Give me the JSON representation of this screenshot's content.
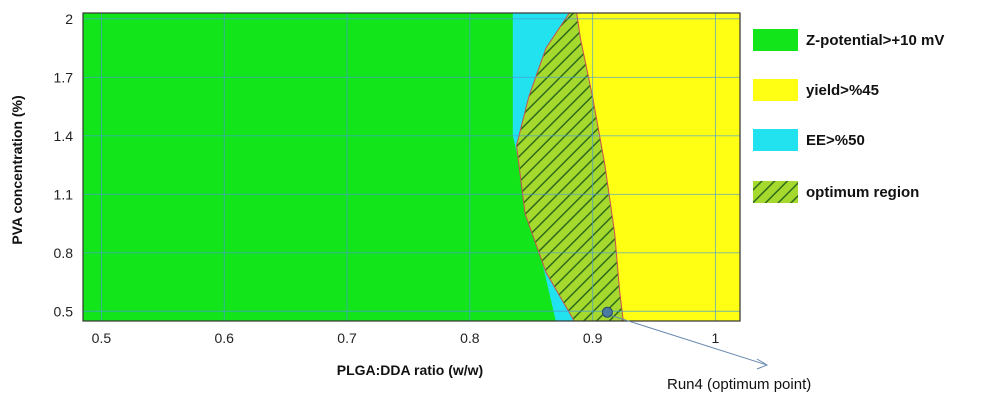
{
  "chart_data": {
    "type": "area",
    "title": "",
    "xlabel": "PLGA:DDA ratio (w/w)",
    "ylabel": "PVA concentration (%)",
    "xlim": [
      0.485,
      1.02
    ],
    "ylim": [
      0.45,
      2.03
    ],
    "x_ticks": [
      0.5,
      0.6,
      0.7,
      0.8,
      0.9,
      1
    ],
    "x_tick_labels": [
      "0.5",
      "0.6",
      "0.7",
      "0.8",
      "0.9",
      "1"
    ],
    "y_ticks": [
      0.5,
      0.8,
      1.1,
      1.4,
      1.7,
      2
    ],
    "y_tick_labels": [
      "0.5",
      "0.8",
      "1.1",
      "1.4",
      "1.7",
      "2"
    ],
    "grid": true,
    "legend_position": "right",
    "regions": [
      {
        "name": "Z-potential>+10 mV",
        "color": "#12e61a",
        "boundary": [
          [
            0.835,
            2.03
          ],
          [
            0.835,
            1.4
          ],
          [
            0.87,
            0.45
          ]
        ]
      },
      {
        "name": "yield>%45",
        "color": "#ffff14",
        "boundary": [
          [
            0.887,
            2.03
          ],
          [
            0.89,
            1.9
          ],
          [
            0.9,
            1.6
          ],
          [
            0.91,
            1.25
          ],
          [
            0.918,
            0.9
          ],
          [
            0.922,
            0.6
          ],
          [
            0.925,
            0.45
          ]
        ]
      },
      {
        "name": "EE>%50",
        "color": "#21e2ee",
        "boundary": [
          [
            0.848,
            2.03
          ],
          [
            0.835,
            1.4
          ],
          [
            0.85,
            0.8
          ],
          [
            0.87,
            0.45
          ]
        ]
      },
      {
        "name": "optimum region",
        "color": "#9ed62a",
        "boundary": [
          [
            0.881,
            2.03
          ],
          [
            0.862,
            1.85
          ],
          [
            0.848,
            1.6
          ],
          [
            0.838,
            1.35
          ],
          [
            0.845,
            1.0
          ],
          [
            0.862,
            0.7
          ],
          [
            0.885,
            0.45
          ],
          [
            0.925,
            0.45
          ],
          [
            0.922,
            0.6
          ],
          [
            0.918,
            0.9
          ],
          [
            0.91,
            1.25
          ],
          [
            0.9,
            1.6
          ],
          [
            0.89,
            1.9
          ],
          [
            0.887,
            2.03
          ]
        ]
      }
    ],
    "points": [
      {
        "label": "Run4 (optimum point)",
        "x": 0.912,
        "y": 0.495
      }
    ]
  },
  "colors": {
    "background": "#ffffff",
    "grid": "#4a9ad4",
    "frame": "#333333",
    "hatch": "#2e6b1a",
    "boundary_line": "#c85050",
    "point": "#4a7aa0",
    "annot_arrow": "#6a8ab0"
  }
}
